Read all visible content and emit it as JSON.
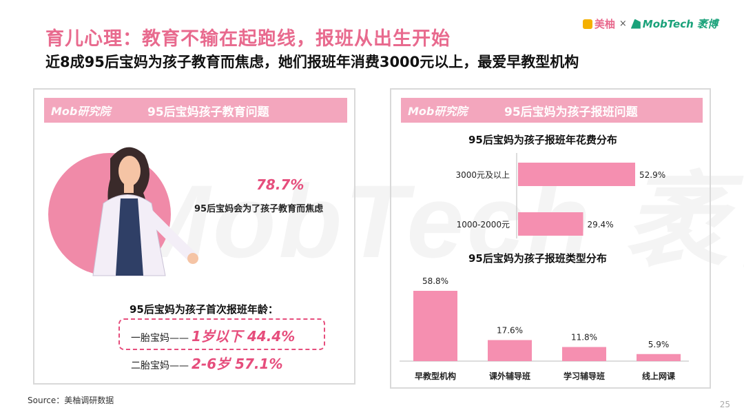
{
  "header": {
    "title": "育儿心理：教育不输在起跑线，报班从出生开始",
    "subtitle": "近8成95后宝妈为孩子教育而焦虑，她们报班年消费3000元以上，最爱早教型机构",
    "brand_meiyou": "美柚",
    "brand_times": "×",
    "brand_mobtech": "MobTech 袤博"
  },
  "left_panel": {
    "logo": "Mob研究院",
    "title": "95后宝妈孩子教育问题",
    "stat_pct": "78.7%",
    "stat_text": "95后宝妈会为了孩子教育而焦虑",
    "age_title": "95后宝妈为孩子首次报班年龄：",
    "first_child_label": "一胎宝妈——",
    "first_child_value": "1岁以下  44.4%",
    "second_child_label": "二胎宝妈——",
    "second_child_value": "2-6岁  57.1%"
  },
  "right_panel": {
    "logo": "Mob研究院",
    "title": "95后宝妈为孩子报班问题"
  },
  "chart_data": [
    {
      "type": "bar",
      "orientation": "horizontal",
      "title": "95后宝妈为孩子报班年花费分布",
      "categories": [
        "3000元及以上",
        "1000-2000元"
      ],
      "values": [
        52.9,
        29.4
      ],
      "labels": [
        "52.9%",
        "29.4%"
      ],
      "color": "#f58fb0"
    },
    {
      "type": "bar",
      "orientation": "vertical",
      "title": "95后宝妈为孩子报班类型分布",
      "categories": [
        "早教型机构",
        "课外辅导班",
        "学习辅导班",
        "线上网课"
      ],
      "values": [
        58.8,
        17.6,
        11.8,
        5.9
      ],
      "labels": [
        "58.8%",
        "17.6%",
        "11.8%",
        "5.9%"
      ],
      "color": "#f58fb0"
    }
  ],
  "footer": {
    "source": "Source：美柚调研数据",
    "page": "25"
  },
  "watermark": "MobTech 袤博"
}
